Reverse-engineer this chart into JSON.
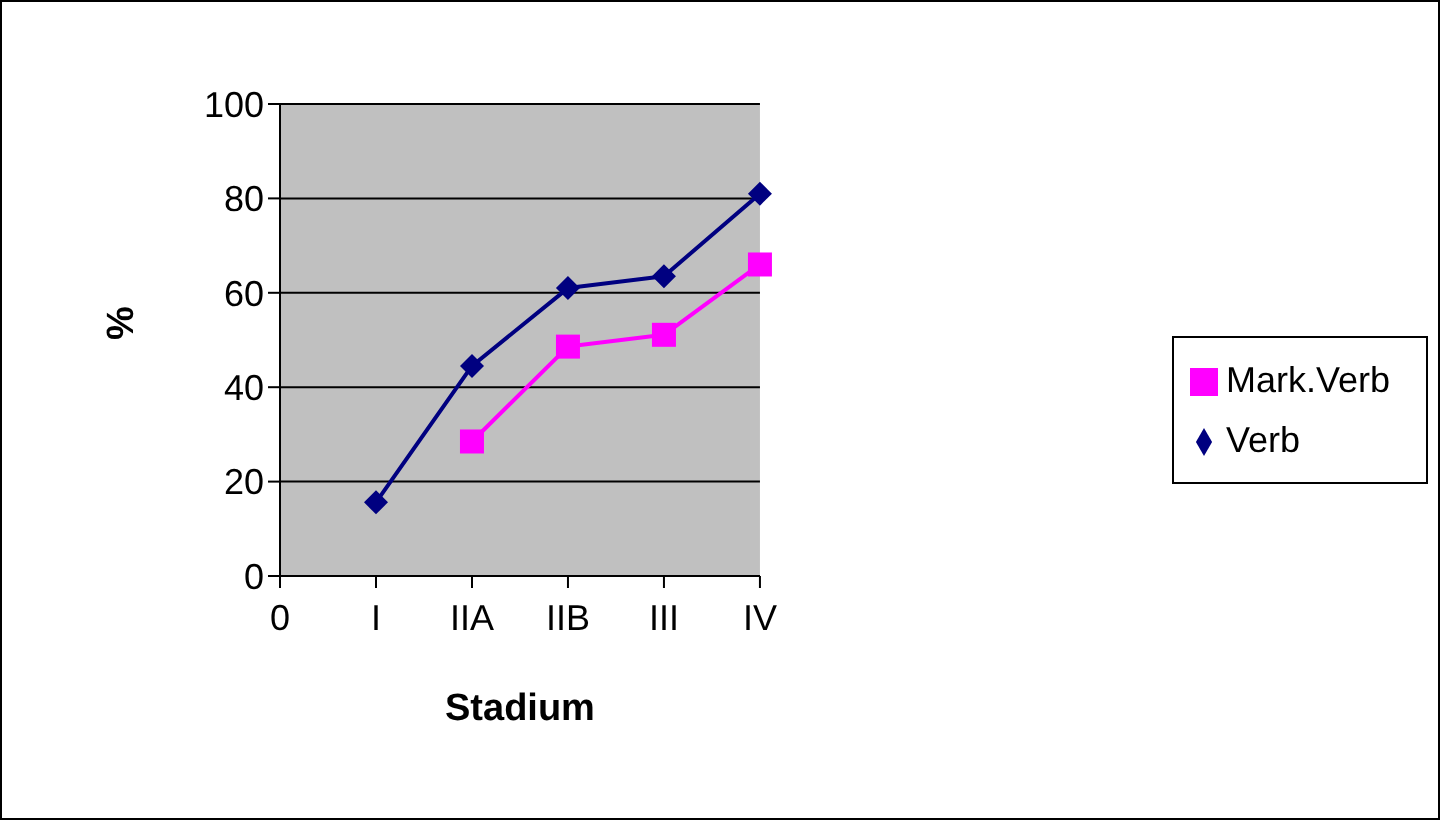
{
  "chart_data": {
    "type": "line",
    "xlabel": "Stadium",
    "ylabel": "%",
    "categories": [
      "0",
      "I",
      "IIA",
      "IIB",
      "III",
      "IV"
    ],
    "series": [
      {
        "name": "Verb",
        "color": "#000080",
        "marker": "diamond",
        "values": [
          null,
          15.6,
          44.5,
          61,
          63.5,
          81
        ]
      },
      {
        "name": "Mark.Verb",
        "color": "#ff00ff",
        "marker": "square",
        "values": [
          null,
          null,
          28.5,
          48.6,
          51.1,
          66
        ]
      }
    ],
    "ylim": [
      0,
      100
    ],
    "yticks": [
      0,
      20,
      40,
      60,
      80,
      100
    ],
    "grid": "y",
    "legend": "right",
    "line_style": "solid"
  }
}
